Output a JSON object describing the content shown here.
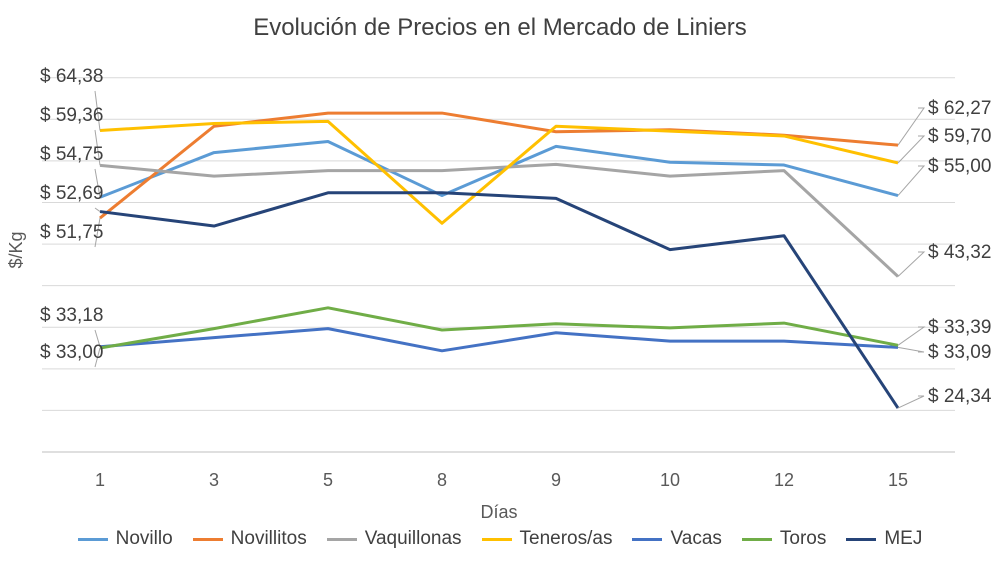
{
  "chart_data": {
    "type": "line",
    "title": "Evolución de Precios en el Mercado de Liniers",
    "xlabel": "Días",
    "ylabel": "$/Kg",
    "categories": [
      "1",
      "3",
      "5",
      "8",
      "9",
      "10",
      "12",
      "15"
    ],
    "ylim": [
      18,
      76
    ],
    "grid": true,
    "legend_position": "bottom",
    "series": [
      {
        "name": "Novillo",
        "color": "#5B9BD5",
        "values": [
          54.75,
          61.2,
          62.8,
          55.0,
          62.1,
          59.8,
          59.4,
          55.0
        ]
      },
      {
        "name": "Novillitos",
        "color": "#ED7D31",
        "values": [
          51.75,
          65.0,
          66.9,
          66.9,
          64.2,
          64.5,
          63.7,
          62.27
        ]
      },
      {
        "name": "Vaquillonas",
        "color": "#A5A5A5",
        "values": [
          59.36,
          57.8,
          58.6,
          58.6,
          59.5,
          57.8,
          58.6,
          43.32
        ]
      },
      {
        "name": "Teneros/as",
        "color": "#FFC000",
        "values": [
          64.38,
          65.4,
          65.7,
          51.0,
          65.0,
          64.3,
          63.6,
          59.7
        ]
      },
      {
        "name": "Vacas",
        "color": "#4472C4",
        "values": [
          33.18,
          34.5,
          35.8,
          32.6,
          35.2,
          34.0,
          34.0,
          33.09
        ]
      },
      {
        "name": "Toros",
        "color": "#70AD47",
        "values": [
          33.0,
          35.8,
          38.8,
          35.6,
          36.5,
          35.9,
          36.6,
          33.39
        ]
      },
      {
        "name": "MEJ",
        "color": "#264478",
        "values": [
          52.69,
          50.6,
          55.4,
          55.4,
          54.6,
          47.2,
          49.2,
          24.34
        ]
      }
    ],
    "data_labels": [
      {
        "text": "$ 64,38",
        "series": "Teneros/as",
        "point": 0
      },
      {
        "text": "$ 59,36",
        "series": "Vaquillonas",
        "point": 0
      },
      {
        "text": "$ 54,75",
        "series": "Novillo",
        "point": 0
      },
      {
        "text": "$ 52,69",
        "series": "MEJ",
        "point": 0
      },
      {
        "text": "$ 51,75",
        "series": "Novillitos",
        "point": 0
      },
      {
        "text": "$ 33,18",
        "series": "Vacas",
        "point": 0
      },
      {
        "text": "$ 33,00",
        "series": "Toros",
        "point": 0
      },
      {
        "text": "$ 62,27",
        "series": "Novillitos",
        "point": 7
      },
      {
        "text": "$ 59,70",
        "series": "Teneros/as",
        "point": 7
      },
      {
        "text": "$ 55,00",
        "series": "Novillo",
        "point": 7
      },
      {
        "text": "$ 43,32",
        "series": "Vaquillonas",
        "point": 7
      },
      {
        "text": "$ 33,39",
        "series": "Toros",
        "point": 7
      },
      {
        "text": "$ 33,09",
        "series": "Vacas",
        "point": 7
      },
      {
        "text": "$ 24,34",
        "series": "MEJ",
        "point": 7
      }
    ]
  }
}
